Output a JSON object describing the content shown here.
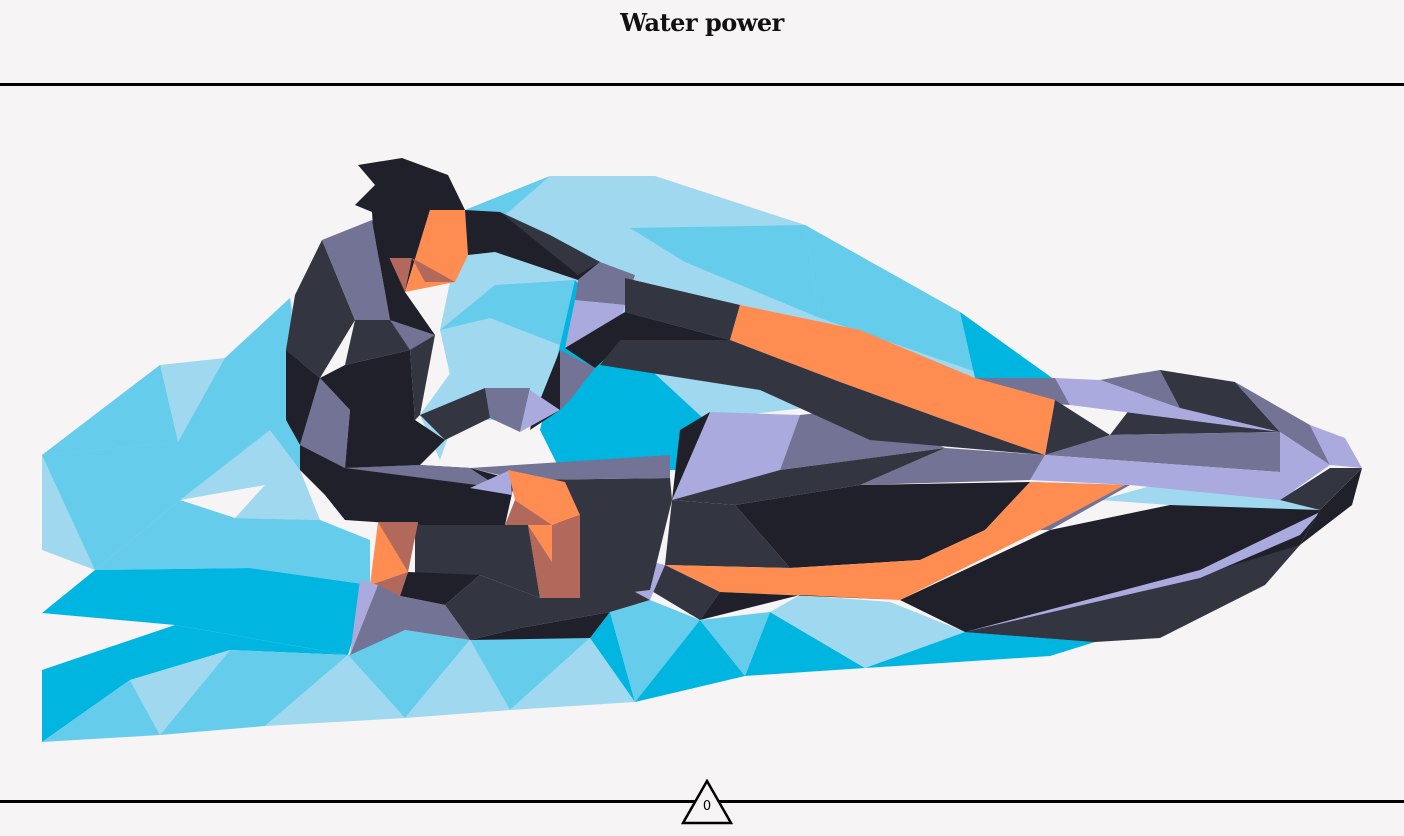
{
  "header": {
    "title": "Water power"
  },
  "puzzle": {
    "image_subject": "jet-ski-rider",
    "palette": {
      "background": "#f6f4f5",
      "water_light": "#9fd8ef",
      "water_mid": "#66cceb",
      "water_deep": "#00b6e0",
      "dark": "#1f2029",
      "charcoal": "#333541",
      "slate": "#727395",
      "lavender": "#aaaade",
      "orange": "#ff8c50",
      "rust": "#b2695b"
    }
  },
  "footer": {
    "counter_value": "0"
  }
}
